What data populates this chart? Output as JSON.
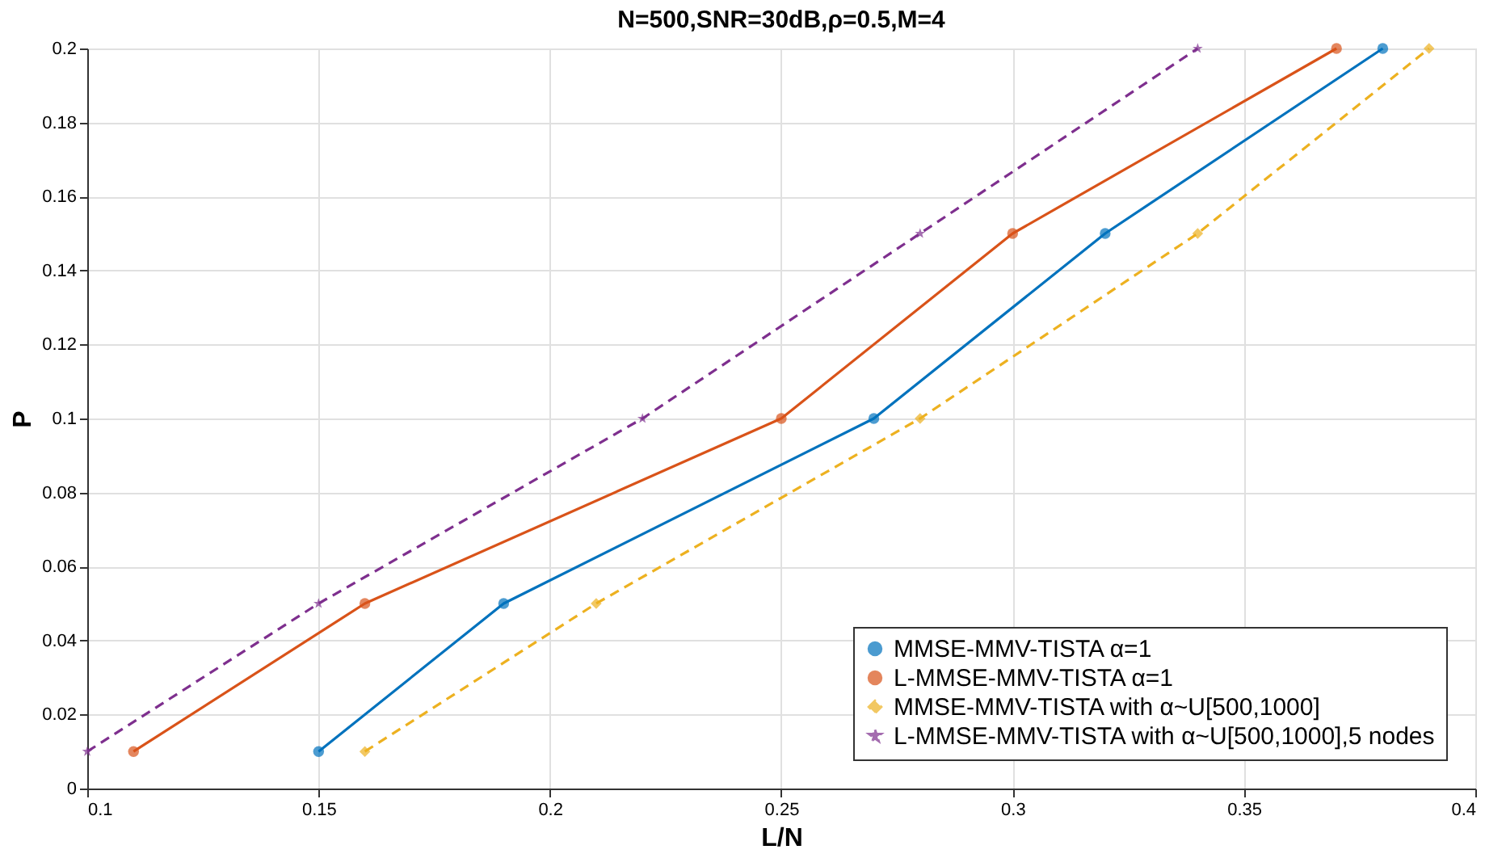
{
  "chart_data": {
    "type": "line",
    "title": "N=500,SNR=30dB,ρ=0.5,M=4",
    "xlabel": "L/N",
    "ylabel": "P",
    "xlim": [
      0.1,
      0.4
    ],
    "xticks": [
      0.1,
      0.15,
      0.2,
      0.25,
      0.3,
      0.35,
      0.4
    ],
    "ylim": [
      0,
      0.2
    ],
    "yticks": [
      0,
      0.02,
      0.04,
      0.06,
      0.08,
      0.1,
      0.12,
      0.14,
      0.16,
      0.18,
      0.2
    ],
    "grid": true,
    "legend": "bottom right",
    "series": [
      {
        "name": "MMSE-MMV-TISTA α=1",
        "color": "#0072bd",
        "marker": "circle",
        "line_style": "solid",
        "x": [
          0.15,
          0.19,
          0.27,
          0.32,
          0.38
        ],
        "values": [
          0.01,
          0.05,
          0.1,
          0.15,
          0.2
        ]
      },
      {
        "name": "L-MMSE-MMV-TISTA α=1",
        "color": "#d95319",
        "marker": "circle",
        "line_style": "solid",
        "x": [
          0.11,
          0.16,
          0.25,
          0.3,
          0.37
        ],
        "values": [
          0.01,
          0.05,
          0.1,
          0.15,
          0.2
        ]
      },
      {
        "name": "MMSE-MMV-TISTA with α~U[500,1000]",
        "color": "#edb120",
        "marker": "diamond",
        "line_style": "dashed",
        "x": [
          0.16,
          0.21,
          0.28,
          0.34,
          0.39
        ],
        "values": [
          0.01,
          0.05,
          0.1,
          0.15,
          0.2
        ]
      },
      {
        "name": "L-MMSE-MMV-TISTA with α~U[500,1000],5 nodes",
        "color": "#7e2f8e",
        "marker": "star",
        "line_style": "dashed",
        "x": [
          0.1,
          0.15,
          0.22,
          0.28,
          0.34
        ],
        "values": [
          0.01,
          0.05,
          0.1,
          0.15,
          0.2
        ]
      }
    ]
  }
}
